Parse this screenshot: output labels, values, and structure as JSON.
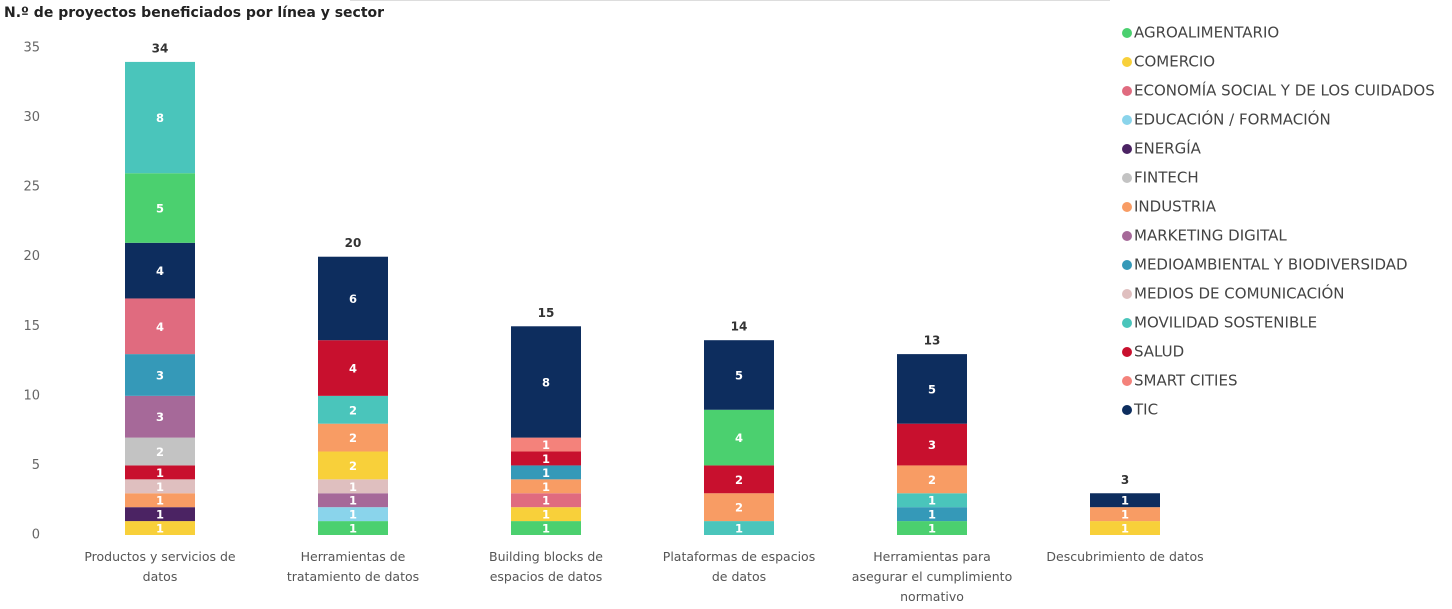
{
  "chart_data": {
    "type": "stacked_bar",
    "title": "N.º de proyectos beneficiados por línea y sector",
    "categories": [
      "Productos y servicios de datos",
      "Herramientas de tratamiento de datos",
      "Building blocks de espacios de datos",
      "Plataformas de espacios de datos",
      "Herramientas para asegurar el cumplimiento normativo",
      "Descubrimiento de datos"
    ],
    "series": [
      {
        "name": "AGROALIMENTARIO",
        "color": "#4bd06f",
        "values": [
          5,
          1,
          1,
          4,
          1,
          null
        ]
      },
      {
        "name": "COMERCIO",
        "color": "#f8d03a",
        "values": [
          1,
          2,
          1,
          null,
          null,
          1
        ]
      },
      {
        "name": "ECONOMÍA SOCIAL Y DE LOS CUIDADOS",
        "color": "#e06b7f",
        "values": [
          4,
          null,
          1,
          null,
          null,
          null
        ]
      },
      {
        "name": "EDUCACIÓN / FORMACIÓN",
        "color": "#8ad4eb",
        "values": [
          null,
          1,
          null,
          null,
          null,
          null
        ]
      },
      {
        "name": "ENERGÍA",
        "color": "#4b2363",
        "values": [
          1,
          null,
          null,
          null,
          null,
          null
        ]
      },
      {
        "name": "FINTECH",
        "color": "#c3c3c3",
        "values": [
          2,
          null,
          null,
          null,
          null,
          null
        ]
      },
      {
        "name": "INDUSTRIA",
        "color": "#f89c64",
        "values": [
          1,
          2,
          1,
          2,
          2,
          1
        ]
      },
      {
        "name": "MARKETING DIGITAL",
        "color": "#a66999",
        "values": [
          3,
          1,
          null,
          null,
          null,
          null
        ]
      },
      {
        "name": "MEDIOAMBIENTAL Y BIODIVERSIDAD",
        "color": "#3599b8",
        "values": [
          3,
          null,
          1,
          null,
          1,
          null
        ]
      },
      {
        "name": "MEDIOS DE COMUNICACIÓN",
        "color": "#dfbfbf",
        "values": [
          1,
          1,
          null,
          null,
          null,
          null
        ]
      },
      {
        "name": "MOVILIDAD SOSTENIBLE",
        "color": "#4ac5bb",
        "values": [
          8,
          2,
          null,
          1,
          1,
          null
        ]
      },
      {
        "name": "SALUD",
        "color": "#c8102e",
        "values": [
          1,
          4,
          1,
          2,
          3,
          null
        ]
      },
      {
        "name": "SMART CITIES",
        "color": "#f4827b",
        "values": [
          null,
          null,
          1,
          null,
          null,
          null
        ]
      },
      {
        "name": "TIC",
        "color": "#0d2d5e",
        "values": [
          4,
          6,
          8,
          5,
          5,
          1
        ]
      }
    ],
    "totals": [
      34,
      20,
      15,
      14,
      13,
      3
    ],
    "ylim": [
      0,
      35
    ],
    "yticks": [
      0,
      5,
      10,
      15,
      20,
      25,
      30,
      35
    ],
    "grid": false,
    "legend": "right"
  }
}
